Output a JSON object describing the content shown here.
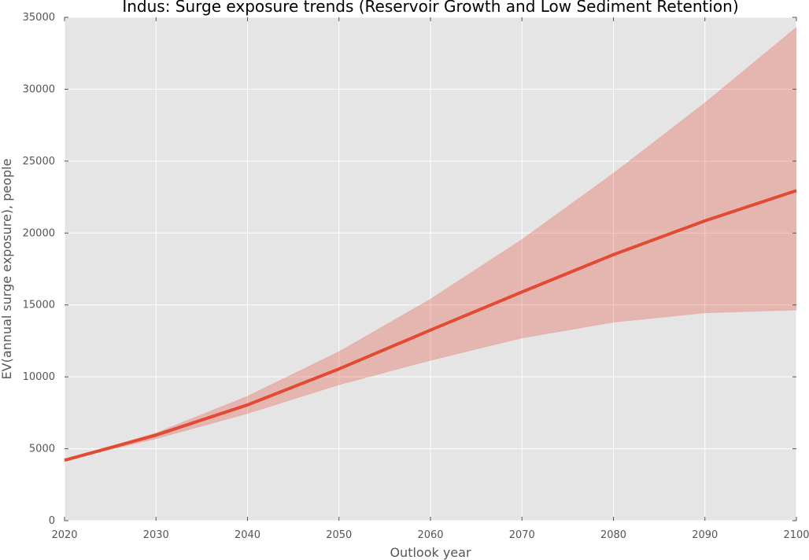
{
  "chart_data": {
    "type": "area",
    "title": "Indus: Surge exposure trends (Reservoir Growth and Low Sediment Retention)",
    "xlabel": "Outlook year",
    "ylabel": "EV(annual surge exposure), people",
    "xlim": [
      2020,
      2100
    ],
    "ylim": [
      0,
      35000
    ],
    "x": [
      2020,
      2030,
      2040,
      2050,
      2060,
      2070,
      2080,
      2090,
      2100
    ],
    "series": [
      {
        "values": [
          4200,
          5950,
          8050,
          10550,
          13250,
          15900,
          18500,
          20850,
          22950
        ],
        "lower": [
          4200,
          5700,
          7450,
          9450,
          11150,
          12700,
          13800,
          14450,
          14650
        ],
        "upper": [
          4200,
          6100,
          8650,
          11750,
          15400,
          19550,
          24150,
          29050,
          34300
        ]
      }
    ],
    "x_ticks": [
      "2020",
      "2030",
      "2040",
      "2050",
      "2060",
      "2070",
      "2080",
      "2090",
      "2100"
    ],
    "y_ticks": [
      "0",
      "5000",
      "10000",
      "15000",
      "20000",
      "25000",
      "30000",
      "35000"
    ],
    "grid": true,
    "colors": {
      "line": "#e24a33",
      "band": "#e24a33",
      "background": "#e5e5e5",
      "grid": "#ffffff",
      "axis_text": "#555555",
      "title": "#000000"
    }
  }
}
